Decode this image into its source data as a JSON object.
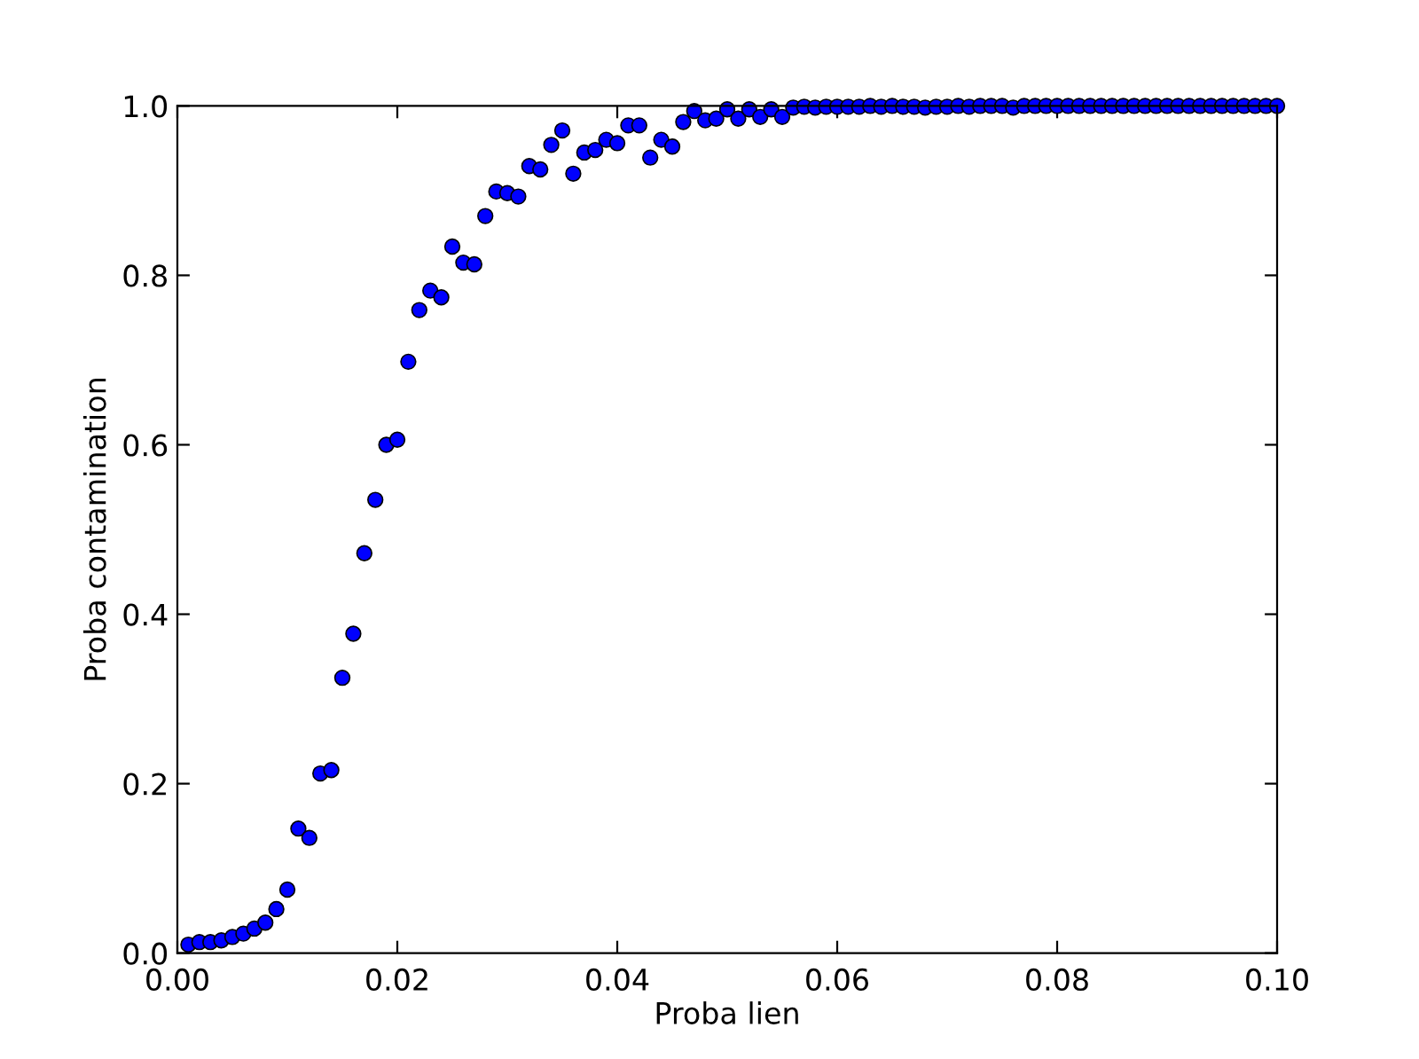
{
  "chart_data": {
    "type": "scatter",
    "xlabel": "Proba lien",
    "ylabel": "Proba contamination",
    "x": [
      0.001,
      0.002,
      0.003,
      0.004,
      0.005,
      0.006,
      0.007,
      0.008,
      0.009,
      0.01,
      0.011,
      0.012,
      0.013,
      0.014,
      0.015,
      0.016,
      0.017,
      0.018,
      0.019,
      0.02,
      0.021,
      0.022,
      0.023,
      0.024,
      0.025,
      0.026,
      0.027,
      0.028,
      0.029,
      0.03,
      0.031,
      0.032,
      0.033,
      0.034,
      0.035,
      0.036,
      0.037,
      0.038,
      0.039,
      0.04,
      0.041,
      0.042,
      0.043,
      0.044,
      0.045,
      0.046,
      0.047,
      0.048,
      0.049,
      0.05,
      0.051,
      0.052,
      0.053,
      0.054,
      0.055,
      0.056,
      0.057,
      0.058,
      0.059,
      0.06,
      0.061,
      0.062,
      0.063,
      0.064,
      0.065,
      0.066,
      0.067,
      0.068,
      0.069,
      0.07,
      0.071,
      0.072,
      0.073,
      0.074,
      0.075,
      0.076,
      0.077,
      0.078,
      0.079,
      0.08,
      0.081,
      0.082,
      0.083,
      0.084,
      0.085,
      0.086,
      0.087,
      0.088,
      0.089,
      0.09,
      0.091,
      0.092,
      0.093,
      0.094,
      0.095,
      0.096,
      0.097,
      0.098,
      0.099,
      0.1
    ],
    "series": [
      {
        "color": "#0000ff",
        "values": [
          0.01,
          0.013,
          0.013,
          0.015,
          0.019,
          0.023,
          0.029,
          0.036,
          0.052,
          0.075,
          0.147,
          0.136,
          0.212,
          0.216,
          0.325,
          0.377,
          0.472,
          0.535,
          0.6,
          0.606,
          0.698,
          0.759,
          0.782,
          0.774,
          0.834,
          0.815,
          0.813,
          0.87,
          0.899,
          0.897,
          0.893,
          0.929,
          0.925,
          0.954,
          0.971,
          0.92,
          0.945,
          0.948,
          0.96,
          0.956,
          0.977,
          0.977,
          0.939,
          0.96,
          0.952,
          0.981,
          0.994,
          0.983,
          0.985,
          0.996,
          0.985,
          0.996,
          0.987,
          0.996,
          0.987,
          0.998,
          0.999,
          0.998,
          0.999,
          0.999,
          0.999,
          0.999,
          1.0,
          0.999,
          1.0,
          0.999,
          0.999,
          0.998,
          0.999,
          0.999,
          1.0,
          0.999,
          1.0,
          1.0,
          1.0,
          0.998,
          1.0,
          1.0,
          1.0,
          1.0,
          1.0,
          1.0,
          1.0,
          1.0,
          1.0,
          1.0,
          1.0,
          1.0,
          1.0,
          1.0,
          1.0,
          1.0,
          1.0,
          1.0,
          1.0,
          1.0,
          1.0,
          1.0,
          1.0,
          1.0
        ]
      }
    ],
    "marker": "circle",
    "xlim": [
      0.0,
      0.1
    ],
    "xticks": [
      {
        "value": 0.0,
        "label": "0.00"
      },
      {
        "value": 0.02,
        "label": "0.02"
      },
      {
        "value": 0.04,
        "label": "0.04"
      },
      {
        "value": 0.06,
        "label": "0.06"
      },
      {
        "value": 0.08,
        "label": "0.08"
      },
      {
        "value": 0.1,
        "label": "0.10"
      }
    ],
    "ylim": [
      0.0,
      1.0
    ],
    "yticks": [
      {
        "value": 0.0,
        "label": "0.0"
      },
      {
        "value": 0.2,
        "label": "0.2"
      },
      {
        "value": 0.4,
        "label": "0.4"
      },
      {
        "value": 0.6,
        "label": "0.6"
      },
      {
        "value": 0.8,
        "label": "0.8"
      },
      {
        "value": 1.0,
        "label": "1.0"
      }
    ]
  }
}
